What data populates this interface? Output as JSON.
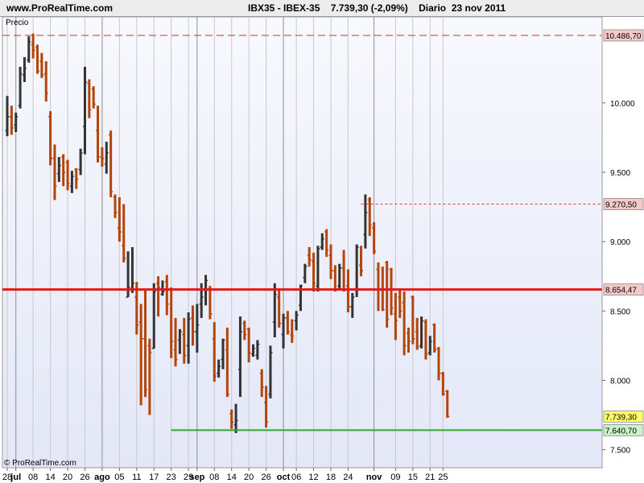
{
  "header": {
    "site": "www.ProRealTime.com",
    "symbol": "IBX35 - IBEX-35",
    "last_change": "7.739,30 (-2,09%)",
    "period": "Diario",
    "date": "23 nov 2011"
  },
  "panel_label": "Precio",
  "watermark": "© ProRealTime.com",
  "colors": {
    "up": "#333333",
    "down": "#b5440a",
    "bg_top": "#f8f9fe",
    "bg_bottom": "#e3e7f7",
    "month_line": "#8f8f8f",
    "week_line": "#c9c9c9",
    "dash_red": "#c0392b",
    "support_red": "#e01b1b",
    "support_green": "#2cab2c",
    "dotted_red": "#d63a3a",
    "label_red_bg": "#f6c9c9",
    "last_bg": "#ffff66",
    "green_bg": "#c9f3c9"
  },
  "chart_data": {
    "type": "ohlc",
    "y_scale": {
      "min": 7370,
      "max": 10620
    },
    "y_ticks": [
      {
        "v": 10000,
        "t": "10.000"
      },
      {
        "v": 9500,
        "t": "9.500"
      },
      {
        "v": 9000,
        "t": "9.000"
      },
      {
        "v": 8500,
        "t": "8.500"
      },
      {
        "v": 8000,
        "t": "8.000"
      },
      {
        "v": 7500,
        "t": "7.500"
      }
    ],
    "x_labels": [
      {
        "i": 0,
        "t": "28"
      },
      {
        "i": 2,
        "t": "jul",
        "bold": true
      },
      {
        "i": 6,
        "t": "08"
      },
      {
        "i": 10,
        "t": "14"
      },
      {
        "i": 14,
        "t": "20"
      },
      {
        "i": 18,
        "t": "26"
      },
      {
        "i": 22,
        "t": "ago",
        "bold": true
      },
      {
        "i": 26,
        "t": "05"
      },
      {
        "i": 30,
        "t": "11"
      },
      {
        "i": 34,
        "t": "17"
      },
      {
        "i": 38,
        "t": "23"
      },
      {
        "i": 42,
        "t": "29"
      },
      {
        "i": 44,
        "t": "sep",
        "bold": true
      },
      {
        "i": 48,
        "t": "08"
      },
      {
        "i": 52,
        "t": "14"
      },
      {
        "i": 56,
        "t": "20"
      },
      {
        "i": 60,
        "t": "26"
      },
      {
        "i": 64,
        "t": "oct",
        "bold": true
      },
      {
        "i": 67,
        "t": "06"
      },
      {
        "i": 71,
        "t": "12"
      },
      {
        "i": 75,
        "t": "18"
      },
      {
        "i": 79,
        "t": "24"
      },
      {
        "i": 85,
        "t": "nov",
        "bold": true
      },
      {
        "i": 90,
        "t": "09"
      },
      {
        "i": 94,
        "t": "15"
      },
      {
        "i": 98,
        "t": "21"
      },
      {
        "i": 101,
        "t": "25"
      }
    ],
    "month_starts": [
      2,
      22,
      44,
      64,
      85
    ],
    "h_lines": [
      {
        "v": 10486.7,
        "label": "10.486,70",
        "style": "dash-red"
      },
      {
        "v": 9270.5,
        "label": "9.270,50",
        "style": "dotted-red"
      },
      {
        "v": 8654.47,
        "label": "8.654,47",
        "style": "support-red"
      },
      {
        "v": 7739.3,
        "label": "7.739,30",
        "style": "last"
      },
      {
        "v": 7640.7,
        "label": "7.640,70",
        "style": "support-green"
      }
    ],
    "bars": [
      [
        9800,
        10050,
        9760,
        9900
      ],
      [
        9900,
        9980,
        9770,
        9820
      ],
      [
        9840,
        9930,
        9790,
        9900
      ],
      [
        9980,
        10260,
        9960,
        10210
      ],
      [
        10200,
        10330,
        10150,
        10250
      ],
      [
        10310,
        10480,
        10290,
        10440
      ],
      [
        10420,
        10500,
        10320,
        10380
      ],
      [
        10400,
        10420,
        10210,
        10230
      ],
      [
        10300,
        10360,
        10180,
        10200
      ],
      [
        10210,
        10300,
        10010,
        10070
      ],
      [
        9900,
        9940,
        9550,
        9600
      ],
      [
        9600,
        9700,
        9300,
        9400
      ],
      [
        9490,
        9610,
        9430,
        9550
      ],
      [
        9610,
        9630,
        9400,
        9500
      ],
      [
        9570,
        9590,
        9370,
        9420
      ],
      [
        9400,
        9510,
        9350,
        9470
      ],
      [
        9520,
        9530,
        9380,
        9450
      ],
      [
        9520,
        9670,
        9480,
        9640
      ],
      [
        9830,
        10260,
        9630,
        10150
      ],
      [
        10140,
        10170,
        9890,
        9950
      ],
      [
        10100,
        10120,
        9960,
        9990
      ],
      [
        9800,
        9980,
        9570,
        9610
      ],
      [
        9610,
        9680,
        9540,
        9600
      ],
      [
        9560,
        9720,
        9490,
        9640
      ],
      [
        9770,
        9800,
        9320,
        9360
      ],
      [
        9320,
        9340,
        9170,
        9210
      ],
      [
        9100,
        9320,
        9000,
        9070
      ],
      [
        8970,
        9270,
        8850,
        8880
      ],
      [
        8600,
        8930,
        8600,
        8670
      ],
      [
        8650,
        8960,
        8630,
        8700
      ],
      [
        8600,
        8710,
        8330,
        8400
      ],
      [
        8420,
        8550,
        7820,
        8300
      ],
      [
        8300,
        8650,
        7880,
        7930
      ],
      [
        8250,
        8300,
        7750,
        8200
      ],
      [
        8230,
        8700,
        8230,
        8640
      ],
      [
        8700,
        8750,
        8460,
        8670
      ],
      [
        8620,
        8720,
        8610,
        8640
      ],
      [
        8710,
        8760,
        8470,
        8550
      ],
      [
        8650,
        8670,
        8160,
        8280
      ],
      [
        8220,
        8450,
        8100,
        8150
      ],
      [
        8290,
        8370,
        8190,
        8350
      ],
      [
        8330,
        8450,
        8120,
        8180
      ],
      [
        8250,
        8490,
        8120,
        8440
      ],
      [
        8450,
        8540,
        8250,
        8350
      ],
      [
        8350,
        8550,
        8200,
        8400
      ],
      [
        8550,
        8700,
        8450,
        8600
      ],
      [
        8650,
        8760,
        8540,
        8720
      ],
      [
        8660,
        8680,
        8440,
        8480
      ],
      [
        8300,
        8420,
        7990,
        8030
      ],
      [
        8050,
        8150,
        8020,
        8100
      ],
      [
        8150,
        8300,
        8080,
        8290
      ],
      [
        8220,
        8380,
        7880,
        7900
      ],
      [
        7760,
        7790,
        7650,
        7700
      ],
      [
        7680,
        7830,
        7620,
        7710
      ],
      [
        8080,
        8460,
        7880,
        8350
      ],
      [
        8410,
        8430,
        8290,
        8330
      ],
      [
        8370,
        8380,
        8130,
        8200
      ],
      [
        8190,
        8260,
        8170,
        8230
      ],
      [
        8180,
        8290,
        8150,
        8260
      ],
      [
        8050,
        8080,
        7880,
        7950
      ],
      [
        7840,
        7960,
        7660,
        7700
      ],
      [
        7900,
        8250,
        7870,
        8200
      ],
      [
        8420,
        8700,
        8310,
        8620
      ],
      [
        8600,
        8660,
        8380,
        8410
      ],
      [
        8330,
        8480,
        8230,
        8450
      ],
      [
        8450,
        8500,
        8330,
        8350
      ],
      [
        8330,
        8440,
        8270,
        8320
      ],
      [
        8430,
        8500,
        8360,
        8470
      ],
      [
        8540,
        8690,
        8500,
        8680
      ],
      [
        8740,
        8840,
        8700,
        8820
      ],
      [
        8900,
        8960,
        8820,
        8870
      ],
      [
        8860,
        8920,
        8640,
        8700
      ],
      [
        8680,
        8970,
        8640,
        8950
      ],
      [
        8960,
        9060,
        8940,
        9020
      ],
      [
        9070,
        9090,
        8890,
        8940
      ],
      [
        8900,
        8980,
        8730,
        8790
      ],
      [
        8790,
        8830,
        8640,
        8660
      ],
      [
        8680,
        8840,
        8660,
        8810
      ],
      [
        8810,
        8940,
        8640,
        8650
      ],
      [
        8680,
        8800,
        8490,
        8530
      ],
      [
        8530,
        8630,
        8450,
        8600
      ],
      [
        8650,
        8980,
        8600,
        8960
      ],
      [
        8830,
        8970,
        8750,
        8790
      ],
      [
        9050,
        9340,
        8950,
        9210
      ],
      [
        9300,
        9320,
        9040,
        9120
      ],
      [
        9100,
        9140,
        8910,
        8930
      ],
      [
        8800,
        8850,
        8500,
        8650
      ],
      [
        8650,
        8820,
        8500,
        8510
      ],
      [
        8850,
        8860,
        8380,
        8440
      ],
      [
        8800,
        8810,
        8470,
        8520
      ],
      [
        8480,
        8630,
        8290,
        8430
      ],
      [
        8600,
        8660,
        8450,
        8500
      ],
      [
        8560,
        8640,
        8180,
        8250
      ],
      [
        8340,
        8380,
        8200,
        8280
      ],
      [
        8600,
        8610,
        8260,
        8300
      ],
      [
        8350,
        8450,
        8220,
        8240
      ],
      [
        8250,
        8460,
        8230,
        8430
      ],
      [
        8420,
        8440,
        8150,
        8190
      ],
      [
        8200,
        8320,
        8180,
        8280
      ],
      [
        8400,
        8410,
        8200,
        8220
      ],
      [
        8230,
        8240,
        8000,
        8050
      ],
      [
        8050,
        8060,
        7890,
        7900
      ],
      [
        7920,
        7930,
        7730,
        7740
      ]
    ]
  }
}
